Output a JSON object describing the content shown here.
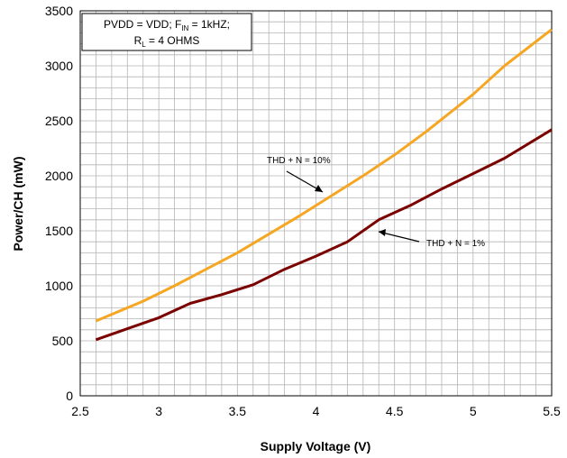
{
  "chart_data": {
    "type": "line",
    "xlabel": "Supply Voltage (V)",
    "ylabel": "Power/CH (mW)",
    "xlim": [
      2.5,
      5.5
    ],
    "ylim": [
      0,
      3500
    ],
    "xticks": [
      "2.5",
      "3",
      "3.5",
      "4",
      "4.5",
      "5",
      "5.5"
    ],
    "yticks": [
      "0",
      "500",
      "1000",
      "1500",
      "2000",
      "2500",
      "3000",
      "3500"
    ],
    "grid": true,
    "conditions": {
      "line1": "PVDD = VDD; F",
      "line1_sub": "IN",
      "line1_rest": " = 1kHZ;",
      "line2": "R",
      "line2_sub": "L",
      "line2_rest": " = 4 OHMS"
    },
    "series": [
      {
        "name": "THD + N = 10%",
        "color": "#f5a623",
        "x": [
          2.6,
          2.9,
          3.1,
          3.3,
          3.5,
          3.7,
          3.9,
          4.1,
          4.3,
          4.5,
          4.7,
          5.0,
          5.2,
          5.5
        ],
        "y": [
          680,
          860,
          1000,
          1150,
          1300,
          1470,
          1640,
          1820,
          2000,
          2190,
          2400,
          2740,
          3000,
          3330
        ]
      },
      {
        "name": "THD + N = 1%",
        "color": "#7b0000",
        "x": [
          2.6,
          2.8,
          3.0,
          3.2,
          3.4,
          3.6,
          3.8,
          4.0,
          4.2,
          4.4,
          4.6,
          4.8,
          5.0,
          5.2,
          5.5
        ],
        "y": [
          510,
          610,
          710,
          840,
          920,
          1010,
          1150,
          1270,
          1400,
          1600,
          1730,
          1880,
          2020,
          2160,
          2420
        ]
      }
    ],
    "annotations": [
      {
        "text": "THD + N = 10%",
        "series": 0
      },
      {
        "text": "THD + N = 1%",
        "series": 1
      }
    ]
  }
}
